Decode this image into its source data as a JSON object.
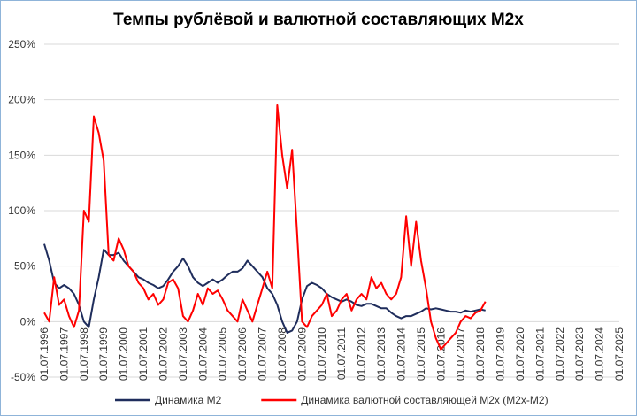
{
  "chart_data": {
    "type": "line",
    "title": "Темпы рублёвой и валютной составляющих М2х",
    "x": [
      1996.5,
      1996.75,
      1997,
      1997.25,
      1997.5,
      1997.75,
      1998,
      1998.25,
      1998.5,
      1998.75,
      1999,
      1999.25,
      1999.5,
      1999.75,
      2000,
      2000.25,
      2000.5,
      2000.75,
      2001,
      2001.25,
      2001.5,
      2001.75,
      2002,
      2002.25,
      2002.5,
      2002.75,
      2003,
      2003.25,
      2003.5,
      2003.75,
      2004,
      2004.25,
      2004.5,
      2004.75,
      2005,
      2005.25,
      2005.5,
      2005.75,
      2006,
      2006.25,
      2006.5,
      2006.75,
      2007,
      2007.25,
      2007.5,
      2007.75,
      2008,
      2008.25,
      2008.5,
      2008.75,
      2009,
      2009.25,
      2009.5,
      2009.75,
      2010,
      2010.25,
      2010.5,
      2010.75,
      2011,
      2011.25,
      2011.5,
      2011.75,
      2012,
      2012.25,
      2012.5,
      2012.75,
      2013,
      2013.25,
      2013.5,
      2013.75,
      2014,
      2014.25,
      2014.5,
      2014.75,
      2015,
      2015.25,
      2015.5,
      2015.75,
      2016,
      2016.25,
      2016.5,
      2016.75,
      2017,
      2017.25,
      2017.5,
      2017.75,
      2018,
      2018.25,
      2018.5,
      2018.75
    ],
    "series": [
      {
        "name": "Динамика М2",
        "color": "#1f2d5c",
        "values": [
          70,
          55,
          35,
          30,
          33,
          30,
          25,
          15,
          0,
          -5,
          20,
          40,
          65,
          60,
          60,
          62,
          55,
          50,
          45,
          40,
          38,
          35,
          33,
          30,
          32,
          38,
          45,
          50,
          57,
          50,
          40,
          35,
          32,
          35,
          38,
          35,
          38,
          42,
          45,
          45,
          48,
          55,
          50,
          45,
          40,
          30,
          25,
          15,
          0,
          -10,
          -8,
          0,
          20,
          32,
          35,
          33,
          30,
          25,
          22,
          20,
          18,
          20,
          18,
          15,
          14,
          16,
          16,
          14,
          12,
          12,
          8,
          5,
          3,
          5,
          5,
          7,
          9,
          12,
          11,
          12,
          11,
          10,
          9,
          9,
          8,
          10,
          9,
          10,
          11,
          10
        ]
      },
      {
        "name": "Динамика валютной составляющей М2х (М2х-М2)",
        "color": "#ff0000",
        "values": [
          8,
          0,
          40,
          15,
          20,
          5,
          -5,
          10,
          100,
          90,
          185,
          170,
          145,
          60,
          55,
          75,
          65,
          50,
          45,
          35,
          30,
          20,
          25,
          15,
          20,
          35,
          38,
          30,
          5,
          0,
          10,
          25,
          15,
          30,
          25,
          28,
          20,
          10,
          5,
          0,
          20,
          10,
          0,
          15,
          30,
          45,
          30,
          195,
          150,
          120,
          155,
          80,
          0,
          -5,
          5,
          10,
          15,
          25,
          5,
          10,
          20,
          25,
          10,
          20,
          25,
          20,
          40,
          30,
          35,
          25,
          20,
          25,
          40,
          95,
          50,
          90,
          55,
          30,
          0,
          -15,
          -25,
          -20,
          -15,
          -10,
          0,
          5,
          3,
          8,
          10,
          18
        ]
      }
    ],
    "xlim": [
      1996.5,
      2025.5
    ],
    "xticks": [
      {
        "value": 1996.5,
        "label": "01.07.1996"
      },
      {
        "value": 1997.5,
        "label": "01.07.1997"
      },
      {
        "value": 1998.5,
        "label": "01.07.1998"
      },
      {
        "value": 1999.5,
        "label": "01.07.1999"
      },
      {
        "value": 2000.5,
        "label": "01.07.2000"
      },
      {
        "value": 2001.5,
        "label": "01.07.2001"
      },
      {
        "value": 2002.5,
        "label": "01.07.2002"
      },
      {
        "value": 2003.5,
        "label": "01.07.2003"
      },
      {
        "value": 2004.5,
        "label": "01.07.2004"
      },
      {
        "value": 2005.5,
        "label": "01.07.2005"
      },
      {
        "value": 2006.5,
        "label": "01.07.2006"
      },
      {
        "value": 2007.5,
        "label": "01.07.2007"
      },
      {
        "value": 2008.5,
        "label": "01.07.2008"
      },
      {
        "value": 2009.5,
        "label": "01.07.2009"
      },
      {
        "value": 2010.5,
        "label": "01.07.2010"
      },
      {
        "value": 2011.5,
        "label": "01.07.2011"
      },
      {
        "value": 2012.5,
        "label": "01.07.2012"
      },
      {
        "value": 2013.5,
        "label": "01.07.2013"
      },
      {
        "value": 2014.5,
        "label": "01.07.2014"
      },
      {
        "value": 2015.5,
        "label": "01.07.2015"
      },
      {
        "value": 2016.5,
        "label": "01.07.2016"
      },
      {
        "value": 2017.5,
        "label": "01.07.2017"
      },
      {
        "value": 2018.5,
        "label": "01.07.2018"
      },
      {
        "value": 2019.5,
        "label": "01.07.2019"
      },
      {
        "value": 2020.5,
        "label": "01.07.2020"
      },
      {
        "value": 2021.5,
        "label": "01.07.2021"
      },
      {
        "value": 2022.5,
        "label": "01.07.2022"
      },
      {
        "value": 2023.5,
        "label": "01.07.2023"
      },
      {
        "value": 2024.5,
        "label": "01.07.2024"
      },
      {
        "value": 2025.5,
        "label": "01.07.2025"
      }
    ],
    "ylim": [
      -50,
      250
    ],
    "yticks": [
      {
        "value": -50,
        "label": "-50%"
      },
      {
        "value": 0,
        "label": "0%"
      },
      {
        "value": 50,
        "label": "50%"
      },
      {
        "value": 100,
        "label": "100%"
      },
      {
        "value": 150,
        "label": "150%"
      },
      {
        "value": 200,
        "label": "200%"
      },
      {
        "value": 250,
        "label": "250%"
      }
    ],
    "grid": true,
    "legend": "bottom"
  }
}
